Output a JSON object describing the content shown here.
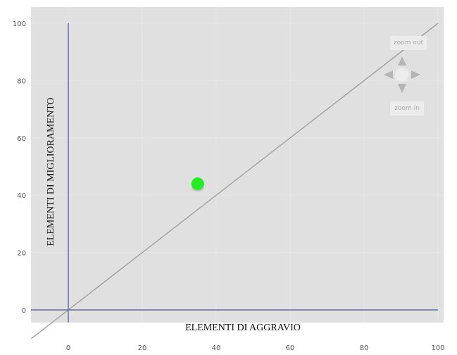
{
  "chart_data": {
    "type": "scatter",
    "title": "",
    "xlabel": "ELEMENTI DI AGGRAVIO",
    "ylabel": "ELEMENTI DI MIGLIORAMENTO",
    "xlim": [
      -10,
      100
    ],
    "ylim": [
      -10,
      100
    ],
    "x_ticks": [
      "0",
      "20",
      "40",
      "60",
      "80",
      "100"
    ],
    "y_ticks": [
      "0",
      "20",
      "40",
      "60",
      "80",
      "100"
    ],
    "grid": true,
    "points": [
      {
        "x": 35,
        "y": 44
      }
    ],
    "reference_line": {
      "from": [
        -10,
        -10
      ],
      "to": [
        100,
        100
      ]
    },
    "colors": {
      "plot_background": "#e0e0e0",
      "point": "#22ee22",
      "axis_lines": "#6a6aa8",
      "diagonal": "#a4a4a4"
    }
  },
  "controls": {
    "zoom_out_label": "zoom out",
    "zoom_in_label": "zoom in",
    "pan_icon": "pan-arrows-icon"
  }
}
